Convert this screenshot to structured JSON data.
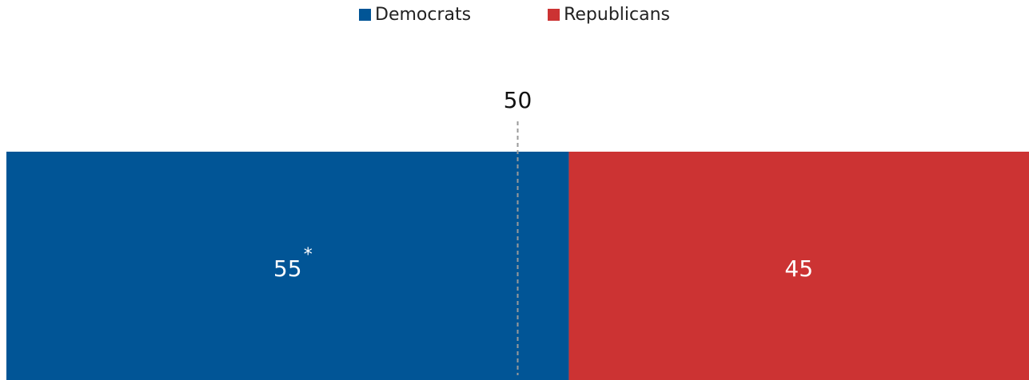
{
  "chart_data": {
    "type": "bar",
    "orientation": "horizontal-stacked",
    "title": "",
    "series": [
      {
        "name": "Democrats",
        "value": 55,
        "label": "55",
        "annotation": "*",
        "color": "#015596"
      },
      {
        "name": "Republicans",
        "value": 45,
        "label": "45",
        "annotation": "",
        "color": "#cc3333"
      }
    ],
    "total": 100,
    "reference_line": {
      "value": 50,
      "label": "50",
      "style": "dashed"
    },
    "legend_position": "top-center",
    "grid": false
  }
}
